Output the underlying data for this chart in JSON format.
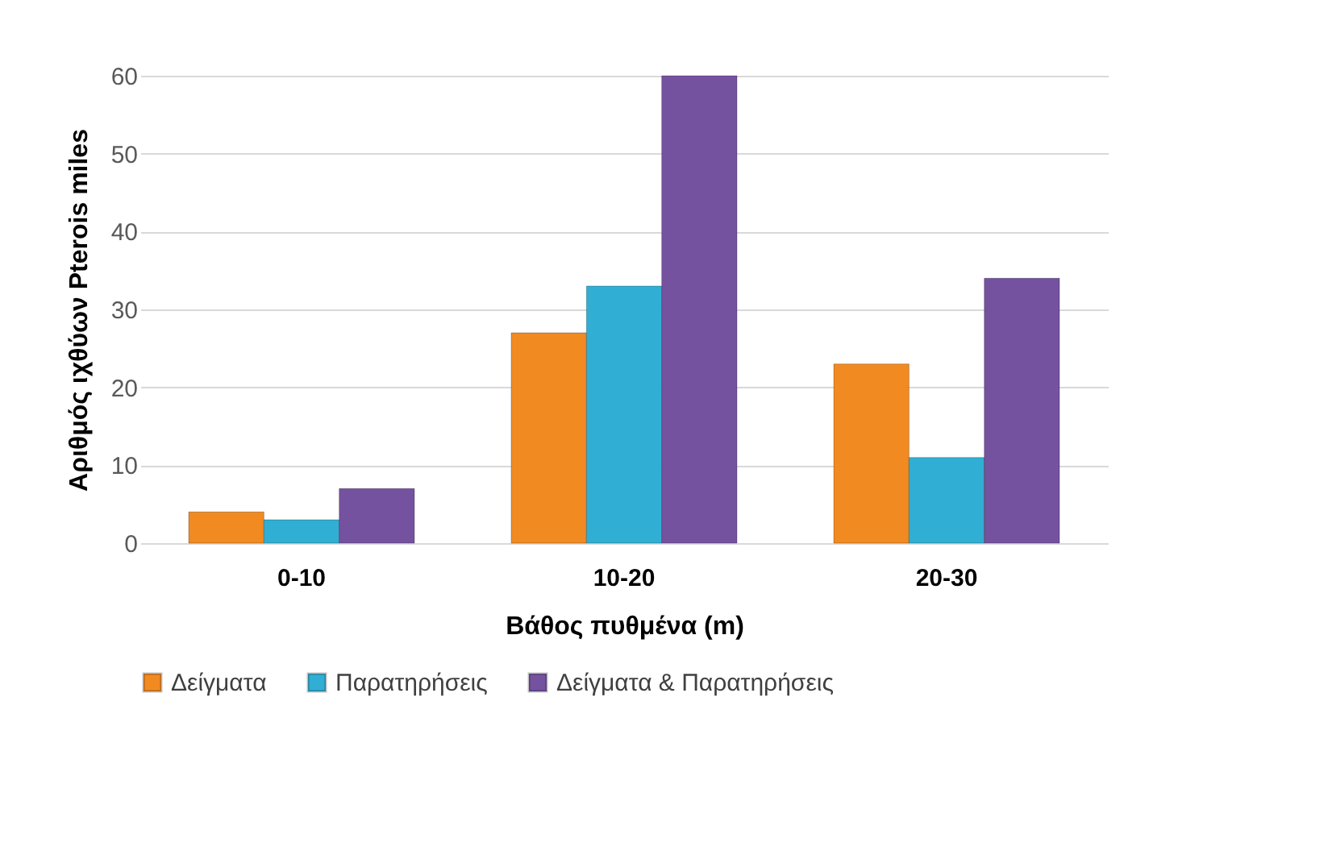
{
  "chart_data": {
    "type": "bar",
    "xlabel": "Βάθος πυθμένα (m)",
    "ylabel": "Αριθμός ιχθύων Pterois miles",
    "categories": [
      "0-10",
      "10-20",
      "20-30"
    ],
    "series": [
      {
        "name": "Δείγματα",
        "color": "#f28a22",
        "values": [
          4,
          27,
          23
        ]
      },
      {
        "name": "Παρατηρήσεις",
        "color": "#31aed3",
        "values": [
          3,
          33,
          11
        ]
      },
      {
        "name": "Δείγματα & Παρατηρήσεις",
        "color": "#7552a0",
        "values": [
          7,
          60,
          34
        ]
      }
    ],
    "ylim": [
      0,
      60
    ],
    "yticks": [
      0,
      10,
      20,
      30,
      40,
      50,
      60
    ],
    "grid": "y",
    "legend": "bottom"
  }
}
